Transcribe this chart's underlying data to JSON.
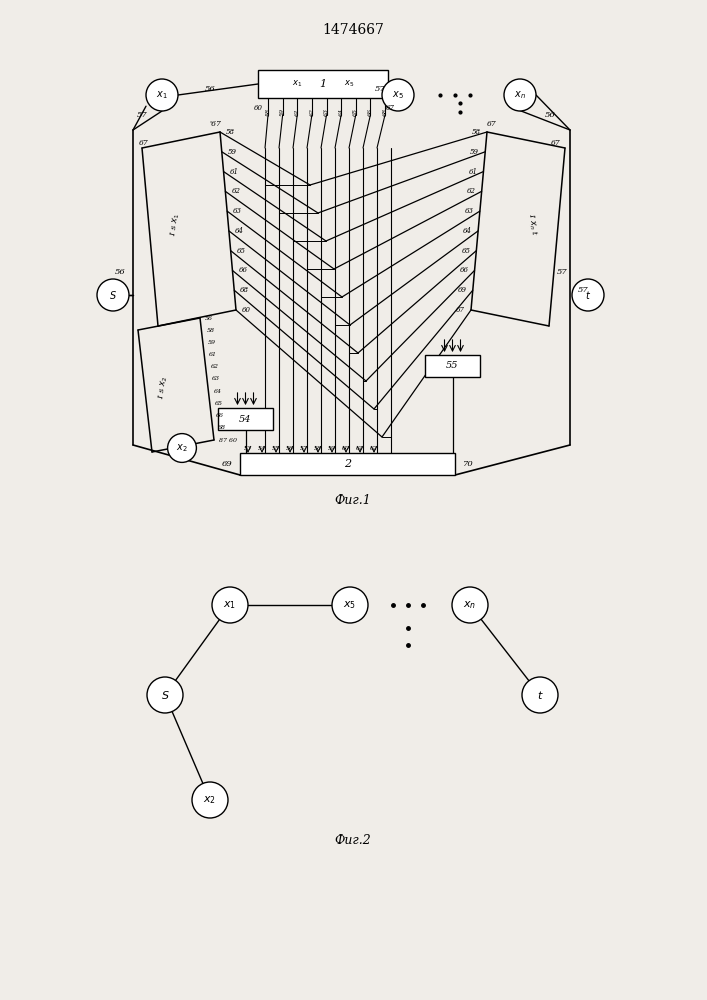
{
  "title": "1474667",
  "fig1_caption": "Фиг.1",
  "fig2_caption": "Фиг.2",
  "bg_color": "#f0ede8",
  "line_color": "#000000"
}
